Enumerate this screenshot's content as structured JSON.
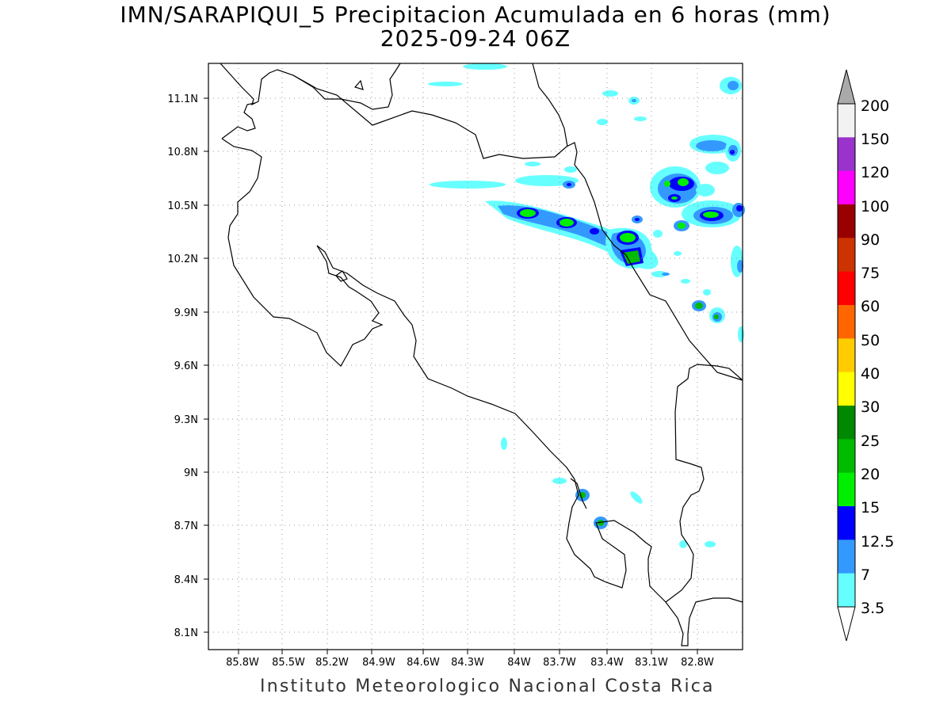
{
  "header": {
    "title_line1": "IMN/SARAPIQUI_5 Precipitacion Acumulada en 6 horas (mm)",
    "title_line2": "2025-09-24 06Z"
  },
  "footer": {
    "credit": "Instituto Meteorologico Nacional Costa Rica"
  },
  "map": {
    "lon_ticks": [
      "85.8W",
      "85.5W",
      "85.2W",
      "84.9W",
      "84.6W",
      "84.3W",
      "84W",
      "83.7W",
      "83.4W",
      "83.1W",
      "82.8W"
    ],
    "lat_ticks": [
      "11.1N",
      "10.8N",
      "10.5N",
      "10.2N",
      "9.9N",
      "9.6N",
      "9.3N",
      "9N",
      "8.7N",
      "8.4N",
      "8.1N"
    ],
    "grid": "dotted"
  },
  "colorbar": {
    "labels": [
      "200",
      "150",
      "120",
      "100",
      "90",
      "75",
      "60",
      "50",
      "40",
      "30",
      "25",
      "20",
      "15",
      "12.5",
      "7",
      "3.5"
    ],
    "colors": [
      "#f2f2f2",
      "#9933cc",
      "#ff00ff",
      "#990000",
      "#cc3300",
      "#ff0000",
      "#ff6600",
      "#ffcc00",
      "#ffff00",
      "#008800",
      "#00bb00",
      "#00ee00",
      "#0000ff",
      "#3399ff",
      "#66ffff"
    ],
    "over_color": "#aaaaaa",
    "under_color": "#ffffff"
  }
}
